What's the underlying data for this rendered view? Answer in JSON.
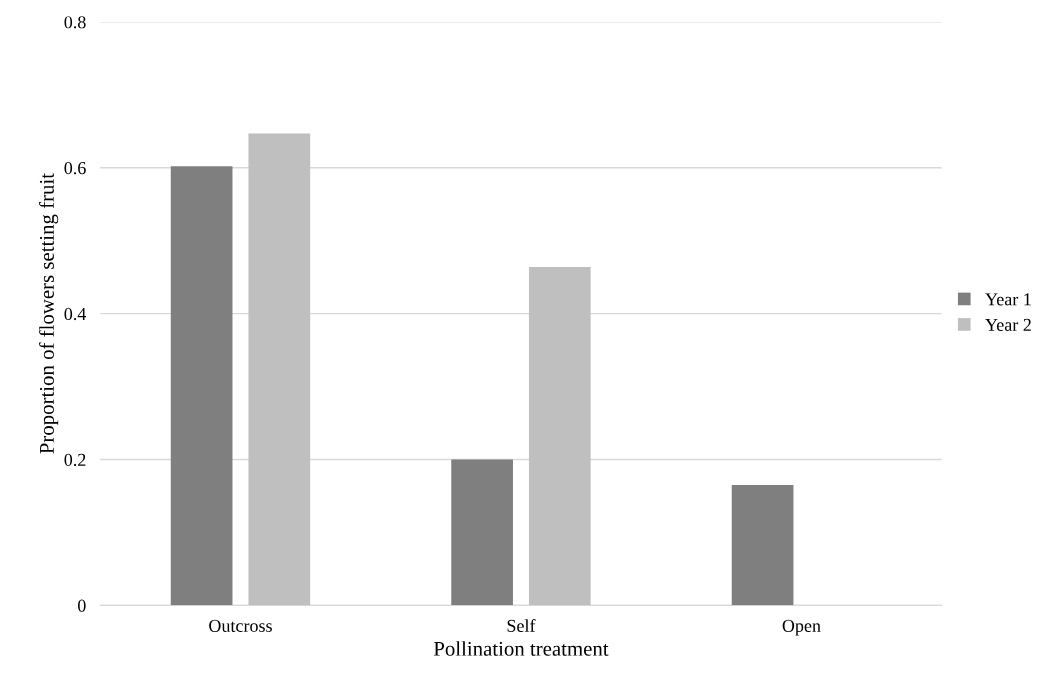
{
  "chart_data": {
    "type": "bar",
    "xlabel": "Pollination treatment",
    "ylabel": "Proportion of flowers setting fruit",
    "categories": [
      "Outcross",
      "Self",
      "Open"
    ],
    "series": [
      {
        "name": "Year 1",
        "color": "#7f7f7f",
        "values": [
          0.602,
          0.2,
          0.165
        ]
      },
      {
        "name": "Year 2",
        "color": "#bfbfbf",
        "values": [
          0.647,
          0.464,
          0
        ]
      }
    ],
    "ylim": [
      0,
      0.8
    ],
    "yticks": [
      {
        "value": 0,
        "label": "0"
      },
      0.2,
      0.4,
      0.6,
      0.8
    ],
    "grid": "y",
    "legend": "right"
  }
}
